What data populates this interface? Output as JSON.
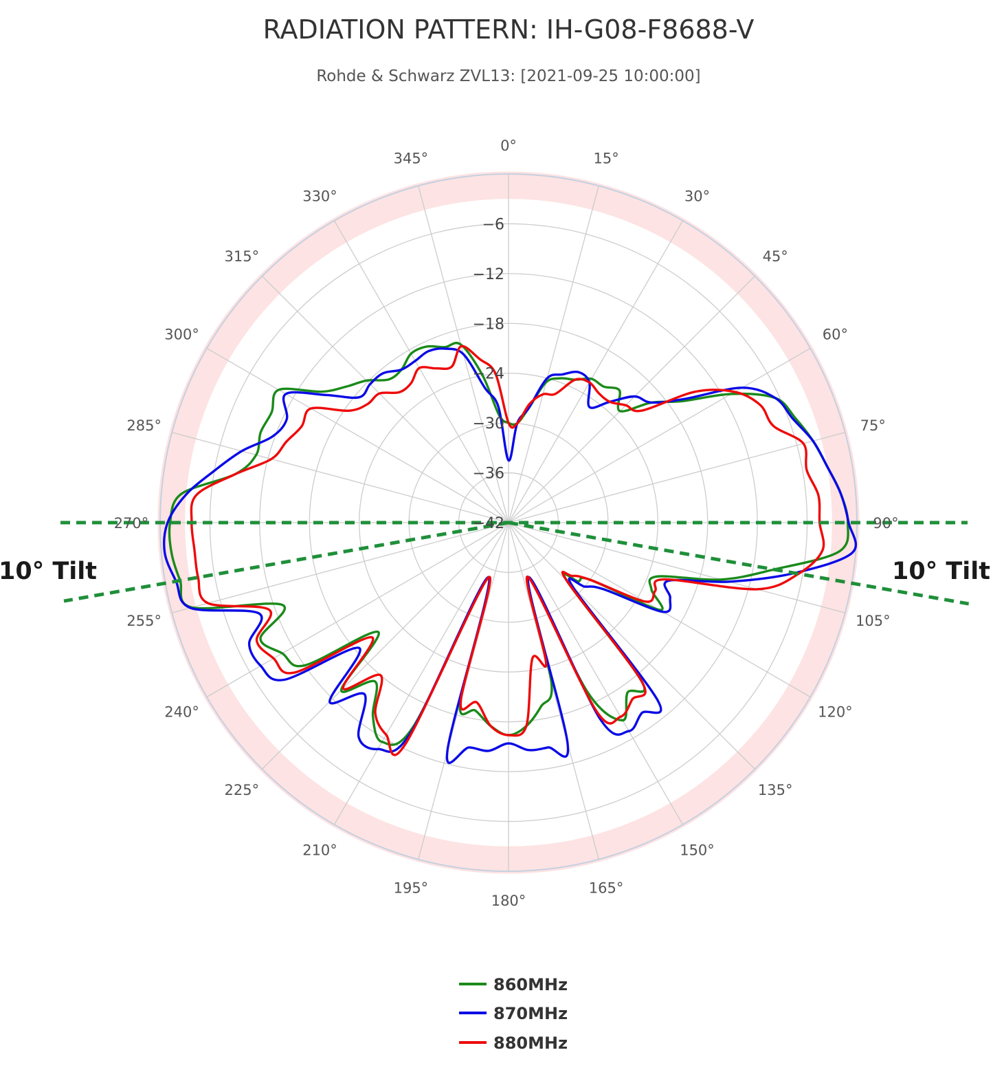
{
  "chart_data": {
    "type": "polar-line",
    "title": "RADIATION PATTERN: IH-G08-F8688-V",
    "subtitle": "Rohde & Schwarz ZVL13: [2021-09-25 10:00:00]",
    "radial_axis": {
      "unit": "dB",
      "range": [
        -42,
        0
      ],
      "tick_values": [
        -42,
        -36,
        -30,
        -24,
        -18,
        -12,
        -6
      ],
      "tick_labels": [
        "−42",
        "−36",
        "−30",
        "−24",
        "−18",
        "−12",
        "−6"
      ]
    },
    "angular_axis": {
      "direction": "clockwise",
      "zero": "top",
      "tick_values": [
        0,
        15,
        30,
        45,
        60,
        75,
        90,
        105,
        120,
        135,
        150,
        165,
        180,
        195,
        210,
        225,
        240,
        255,
        270,
        285,
        300,
        315,
        330,
        345
      ],
      "tick_labels": [
        "0°",
        "15°",
        "30°",
        "45°",
        "60°",
        "75°",
        "90°",
        "105°",
        "120°",
        "135°",
        "150°",
        "165°",
        "180°",
        "195°",
        "210°",
        "225°",
        "240°",
        "255°",
        "270°",
        "285°",
        "300°",
        "315°",
        "330°",
        "345°"
      ]
    },
    "highlight_band": {
      "from": -3,
      "to": 0.3,
      "color": "#fde3e3"
    },
    "reference_lines": {
      "color": "#1f8f3a",
      "horizontal_deg": [
        90,
        270
      ],
      "tilt_deg": 10,
      "tilt_labels": [
        "10° Tilt",
        "10° Tilt"
      ]
    },
    "angles_deg": [
      0,
      5,
      10,
      15,
      20,
      25,
      30,
      35,
      40,
      45,
      50,
      55,
      60,
      65,
      70,
      75,
      80,
      85,
      90,
      95,
      100,
      105,
      110,
      115,
      120,
      125,
      130,
      135,
      140,
      145,
      150,
      155,
      160,
      165,
      170,
      175,
      180,
      185,
      190,
      195,
      200,
      205,
      210,
      215,
      220,
      225,
      230,
      235,
      240,
      245,
      250,
      255,
      260,
      265,
      270,
      275,
      280,
      285,
      290,
      295,
      300,
      305,
      310,
      315,
      320,
      325,
      330,
      335,
      340,
      345,
      350,
      355,
      360
    ],
    "series": [
      {
        "name": "860MHz",
        "color": "#1a8a1a",
        "values": [
          -30,
          -30,
          -28,
          -24.5,
          -23.5,
          -23,
          -22,
          -22,
          -21.2,
          -23,
          -19.5,
          -16.5,
          -11,
          -6.5,
          -5.2,
          -4,
          -3,
          -1.8,
          -1.1,
          -2,
          -9.5,
          -15.5,
          -23,
          -23,
          -21,
          -30,
          -31,
          -32,
          -17,
          -17,
          -14.5,
          -19.5,
          -35,
          -22,
          -19.5,
          -17.4,
          -16.4,
          -17.4,
          -19,
          -19.5,
          -35,
          -15,
          -11.5,
          -13.5,
          -17,
          -13.5,
          -21.5,
          -12,
          -10.5,
          -9,
          -13,
          -2.5,
          -1.8,
          -1.2,
          -1.2,
          -2.4,
          -8.5,
          -10.5,
          -10.2,
          -10.5,
          -10,
          -14.5,
          -16.5,
          -17.8,
          -19.5,
          -19.5,
          -18.5,
          -18.6,
          -19.5,
          -19.8,
          -24,
          -29,
          -30
        ]
      },
      {
        "name": "870MHz",
        "color": "#0a0ae6",
        "values": [
          -34.5,
          -30,
          -28,
          -24,
          -23,
          -22,
          -22.5,
          -25,
          -23,
          -20.5,
          -19.5,
          -16,
          -9.5,
          -6.5,
          -5.5,
          -4,
          -3,
          -1.8,
          -1,
          -0.4,
          -7,
          -14.5,
          -21.5,
          -20.5,
          -20.5,
          -28,
          -30,
          -31,
          -14,
          -14,
          -13,
          -16,
          -35,
          -14.5,
          -14.5,
          -14.5,
          -15.4,
          -14.4,
          -14.5,
          -13.5,
          -35,
          -14,
          -10.5,
          -10.5,
          -15,
          -11.5,
          -18.5,
          -9,
          -7.5,
          -7.5,
          -10,
          -2.3,
          -1.3,
          -0.4,
          -0.9,
          -3,
          -6,
          -8.7,
          -11.7,
          -12.5,
          -11,
          -15.2,
          -18.5,
          -18.4,
          -18.5,
          -19.5,
          -19.5,
          -19.2,
          -19.7,
          -21,
          -25.5,
          -28,
          -34.5
        ]
      },
      {
        "name": "880MHz",
        "color": "#ee0a0a",
        "values": [
          -30,
          -30,
          -27.5,
          -26,
          -25.5,
          -23,
          -22.5,
          -23,
          -23,
          -22,
          -21,
          -14.5,
          -10.5,
          -8.5,
          -8,
          -5.2,
          -5.5,
          -4.5,
          -4.5,
          -4,
          -6.5,
          -11,
          -22,
          -22.5,
          -23,
          -30,
          -32,
          -32,
          -17,
          -16,
          -15,
          -17,
          -35,
          -24.5,
          -25.4,
          -17.4,
          -16.4,
          -17.4,
          -20,
          -19.8,
          -35,
          -12.5,
          -12.5,
          -14,
          -18,
          -13.8,
          -20.5,
          -10.5,
          -9.3,
          -8.5,
          -11.3,
          -4.5,
          -4,
          -4,
          -3.8,
          -4.2,
          -8.5,
          -12.4,
          -13.5,
          -14.5,
          -14.5,
          -18.5,
          -19.8,
          -20,
          -21.5,
          -21.5,
          -20.5,
          -21.5,
          -22,
          -20,
          -22,
          -24,
          -30
        ]
      }
    ]
  }
}
